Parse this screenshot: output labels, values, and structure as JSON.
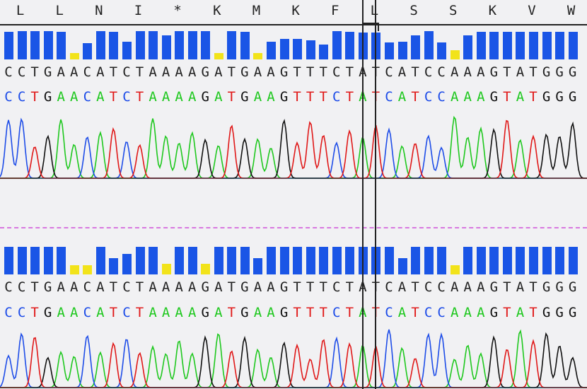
{
  "colors": {
    "A": "#1ec81e",
    "C": "#1e4de8",
    "G": "#111111",
    "T": "#e01818",
    "quality_high": "#1a55e6",
    "quality_low": "#f2e31a",
    "background": "#f1f1f3",
    "divider": "#d878e0"
  },
  "amino_acids": [
    "L",
    "L",
    "N",
    "I",
    "*",
    "K",
    "M",
    "K",
    "F",
    "L",
    "S",
    "S",
    "K",
    "V",
    "W"
  ],
  "tracks": [
    {
      "id": "track-1",
      "called_sequence": "CCTGAACATCTAAAAGATGAAGTTTCTATCATCCAAAGTATGGG",
      "colored_sequence": "CCTGAACATCTAAAAGATGAAGTTTCTATCATCCAAAGTATGGG",
      "quality": [
        0.92,
        0.95,
        0.95,
        0.95,
        0.92,
        0.22,
        0.55,
        0.95,
        0.92,
        0.6,
        0.95,
        0.95,
        0.8,
        0.95,
        0.95,
        0.95,
        0.22,
        0.95,
        0.92,
        0.22,
        0.6,
        0.7,
        0.7,
        0.65,
        0.5,
        0.95,
        0.92,
        0.9,
        0.9,
        0.58,
        0.6,
        0.8,
        0.95,
        0.58,
        0.3,
        0.8,
        0.92,
        0.92,
        0.92,
        0.92,
        0.92,
        0.92,
        0.92,
        0.92
      ]
    },
    {
      "id": "track-2",
      "called_sequence": "CCTGAACATCTAAAAGATGAAGTTTCTATCATCCAAAGTATGGG",
      "colored_sequence": "CCTGAACATCTAAAAGATGAAGTTTCTATCATCCAAAGTATGGG",
      "quality": [
        0.92,
        0.92,
        0.92,
        0.92,
        0.92,
        0.3,
        0.3,
        0.92,
        0.55,
        0.7,
        0.92,
        0.92,
        0.35,
        0.92,
        0.92,
        0.35,
        0.92,
        0.92,
        0.92,
        0.55,
        0.92,
        0.92,
        0.92,
        0.92,
        0.92,
        0.92,
        0.92,
        0.92,
        0.92,
        0.92,
        0.55,
        0.92,
        0.92,
        0.92,
        0.3,
        0.92,
        0.92,
        0.92,
        0.92,
        0.92,
        0.92,
        0.92,
        0.92,
        0.92
      ]
    }
  ],
  "cursor": {
    "base_index": 28
  }
}
